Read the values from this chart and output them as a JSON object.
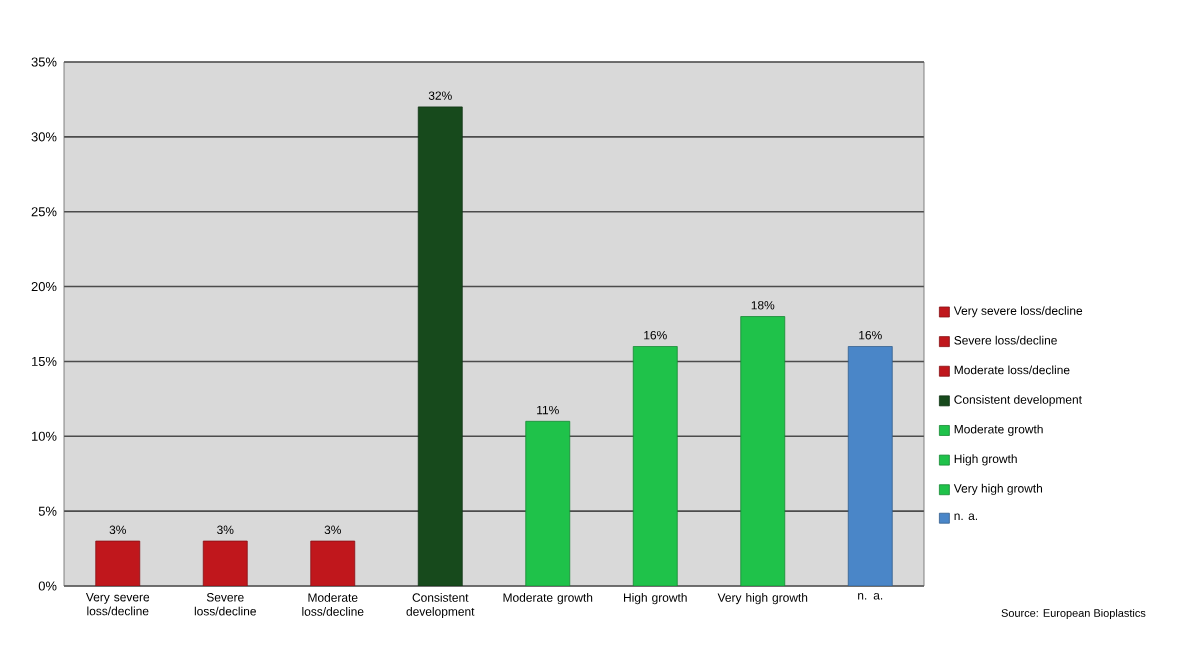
{
  "chart_data": {
    "type": "bar",
    "categories": [
      "Very severe loss/decline",
      "Severe loss/decline",
      "Moderate loss/decline",
      "Consistent development",
      "Moderate growth",
      "High growth",
      "Very high growth",
      "n. a."
    ],
    "series": [
      {
        "name": "Very severe loss/decline",
        "color": "#c0171c",
        "values": [
          3,
          null,
          null,
          null,
          null,
          null,
          null,
          null
        ],
        "value_labels": [
          "3%",
          null,
          null,
          null,
          null,
          null,
          null,
          null
        ]
      },
      {
        "name": "Severe loss/decline",
        "color": "#c0171c",
        "values": [
          null,
          3,
          null,
          null,
          null,
          null,
          null,
          null
        ],
        "value_labels": [
          null,
          "3%",
          null,
          null,
          null,
          null,
          null,
          null
        ]
      },
      {
        "name": "Moderate loss/decline",
        "color": "#c0171c",
        "values": [
          null,
          null,
          3,
          null,
          null,
          null,
          null,
          null
        ],
        "value_labels": [
          null,
          null,
          "3%",
          null,
          null,
          null,
          null,
          null
        ]
      },
      {
        "name": "Consistent development",
        "color": "#174a1c",
        "values": [
          null,
          null,
          null,
          32,
          null,
          null,
          null,
          null
        ],
        "value_labels": [
          null,
          null,
          null,
          "32%",
          null,
          null,
          null,
          null
        ]
      },
      {
        "name": "Moderate growth",
        "color": "#1fc24a",
        "values": [
          null,
          null,
          null,
          null,
          11,
          null,
          null,
          null
        ],
        "value_labels": [
          null,
          null,
          null,
          null,
          "11%",
          null,
          null,
          null
        ]
      },
      {
        "name": "High growth",
        "color": "#1fc24a",
        "values": [
          null,
          null,
          null,
          null,
          null,
          16,
          null,
          null
        ],
        "value_labels": [
          null,
          null,
          null,
          null,
          null,
          "16%",
          null,
          null
        ]
      },
      {
        "name": "Very high growth",
        "color": "#1fc24a",
        "values": [
          null,
          null,
          null,
          null,
          null,
          null,
          18,
          null
        ],
        "value_labels": [
          null,
          null,
          null,
          null,
          null,
          null,
          "18%",
          null
        ]
      },
      {
        "name": "n. a.",
        "color": "#4a86c8",
        "values": [
          null,
          null,
          null,
          null,
          null,
          null,
          null,
          16
        ],
        "value_labels": [
          null,
          null,
          null,
          null,
          null,
          null,
          null,
          "16%"
        ]
      }
    ],
    "ylim": [
      0,
      35
    ],
    "yticks": [
      {
        "value": 0,
        "label": "0%"
      },
      {
        "value": 5,
        "label": "5%"
      },
      {
        "value": 10,
        "label": "10%"
      },
      {
        "value": 15,
        "label": "15%"
      },
      {
        "value": 20,
        "label": "20%"
      },
      {
        "value": 25,
        "label": "25%"
      },
      {
        "value": 30,
        "label": "30%"
      },
      {
        "value": 35,
        "label": "35%"
      }
    ],
    "grid": "y",
    "legend": "right",
    "annotations": [
      "Source: European Bioplastics"
    ]
  }
}
